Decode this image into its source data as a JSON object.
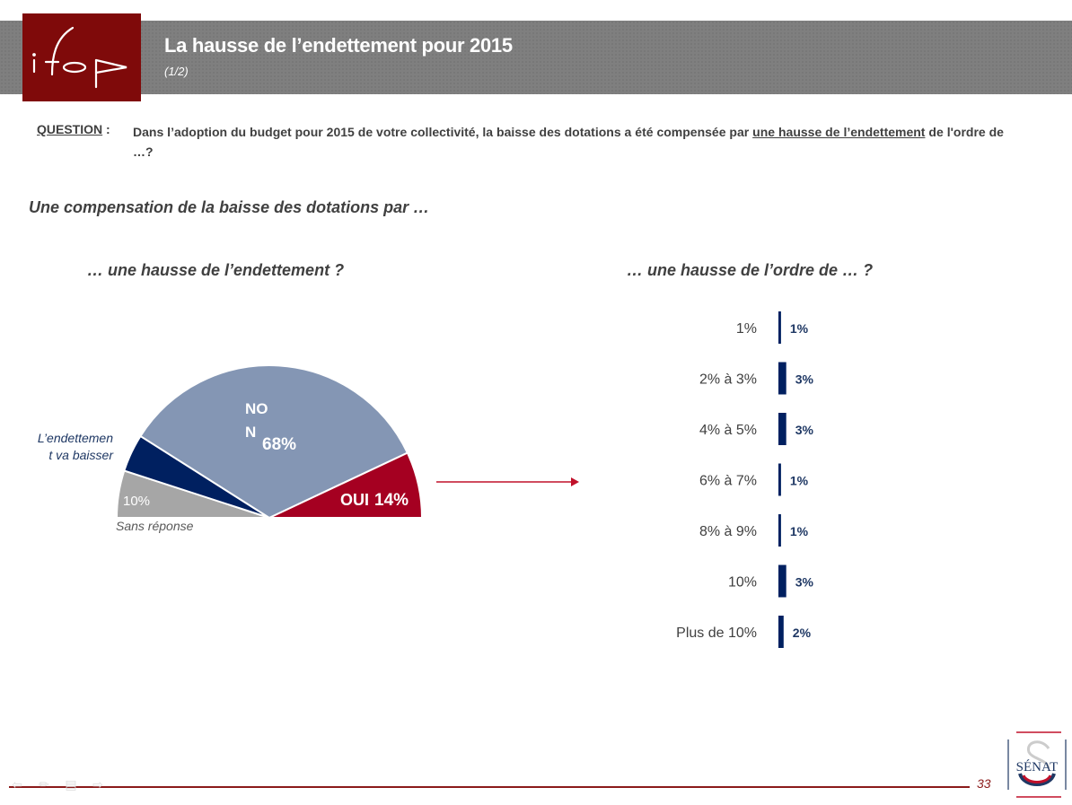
{
  "header": {
    "logo_text": "ifop",
    "title": "La hausse de l’endettement pour 2015",
    "subtitle": "(1/2)"
  },
  "question": {
    "label": "QUESTION",
    "separator": " :",
    "text_part1": "Dans l’adoption du budget pour 2015 de votre collectivité, la baisse des dotations a été compensée par ",
    "text_underlined": "une hausse de l’endettement",
    "text_part2": " de l'ordre de …?"
  },
  "section_title": "Une compensation  de la baisse des dotations par …",
  "colors": {
    "brand_red": "#7f0a0a",
    "header_gray": "#7f7f7f",
    "non": "#8496b4",
    "oui": "#a50021",
    "baisser": "#002060",
    "sans_reponse": "#a6a6a6",
    "bar": "#002060",
    "arrow": "#c0102a"
  },
  "chart_data": [
    {
      "type": "pie",
      "subtype": "half-donut",
      "title": "… une hausse de l’endettement ?",
      "slices": [
        {
          "label": "Sans réponse",
          "value": 10,
          "value_label": "10%",
          "color": "#a6a6a6"
        },
        {
          "label": "L’endettement va baisser",
          "value": 8,
          "value_label": "",
          "color": "#002060"
        },
        {
          "label": "NON",
          "value": 68,
          "value_label": "68%",
          "color": "#8496b4"
        },
        {
          "label": "OUI",
          "value": 14,
          "value_label": "14%",
          "color": "#a50021"
        }
      ],
      "external_labels": {
        "baisser_line1": "L’endettemen",
        "baisser_line2": "t va baisser",
        "sans_reponse": "Sans réponse"
      },
      "inner_labels": {
        "non_line1": "NO",
        "non_line2": "N",
        "non_value": "68%",
        "oui_label": "OUI",
        "oui_value": "14%",
        "sans_value": "10%"
      }
    },
    {
      "type": "bar",
      "orientation": "horizontal",
      "title": "… une hausse de l’ordre de … ?",
      "categories": [
        "1%",
        "2% à 3%",
        "4% à 5%",
        "6% à 7%",
        "8% à 9%",
        "10%",
        "Plus de 10%"
      ],
      "values": [
        1,
        3,
        3,
        1,
        1,
        3,
        2
      ],
      "value_labels": [
        "1%",
        "3%",
        "3%",
        "1%",
        "1%",
        "3%",
        "2%"
      ],
      "xlim": [
        0,
        100
      ],
      "grid": false,
      "color": "#002060"
    }
  ],
  "footer": {
    "page_number": "33",
    "senat_text": "SÉNAT",
    "nav_icons": [
      "arrow-left-icon",
      "pen-icon",
      "menu-icon",
      "arrow-right-icon"
    ]
  }
}
